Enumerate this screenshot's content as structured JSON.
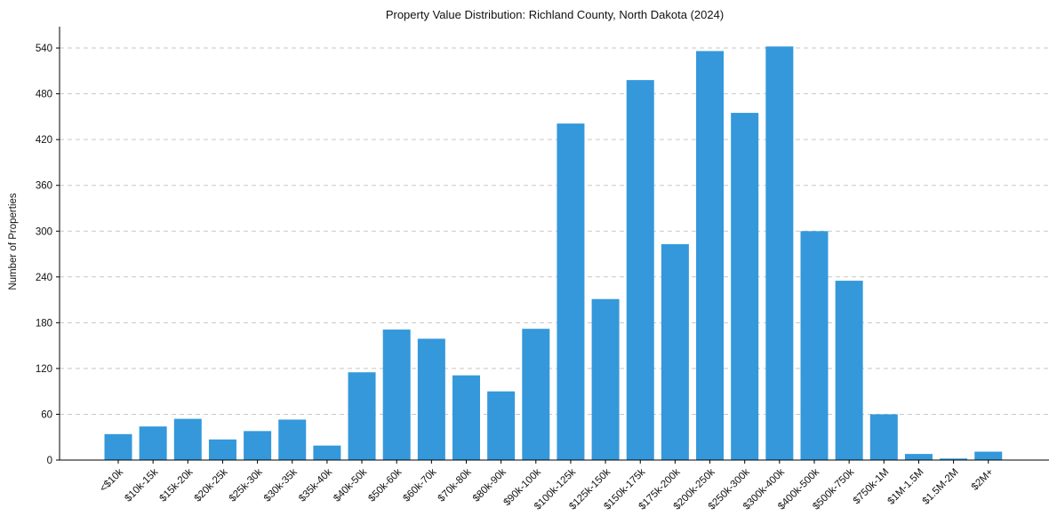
{
  "chart_data": {
    "type": "bar",
    "title": "Property Value Distribution: Richland County, North Dakota (2024)",
    "xlabel": "",
    "ylabel": "Number of Properties",
    "categories": [
      "<$10k",
      "$10k-15k",
      "$15k-20k",
      "$20k-25k",
      "$25k-30k",
      "$30k-35k",
      "$35k-40k",
      "$40k-50k",
      "$50k-60k",
      "$60k-70k",
      "$70k-80k",
      "$80k-90k",
      "$90k-100k",
      "$100k-125k",
      "$125k-150k",
      "$150k-175k",
      "$175k-200k",
      "$200k-250k",
      "$250k-300k",
      "$300k-400k",
      "$400k-500k",
      "$500k-750k",
      "$750k-1M",
      "$1M-1.5M",
      "$1.5M-2M",
      "$2M+"
    ],
    "values": [
      34,
      44,
      54,
      27,
      38,
      53,
      19,
      115,
      171,
      159,
      111,
      90,
      172,
      441,
      211,
      498,
      283,
      536,
      455,
      542,
      300,
      235,
      60,
      8,
      2,
      11
    ],
    "yticks": [
      0,
      60,
      120,
      180,
      240,
      300,
      360,
      420,
      480,
      540
    ],
    "ylim": [
      0,
      568
    ],
    "grid": "y-dashed",
    "color": "#3498db"
  }
}
